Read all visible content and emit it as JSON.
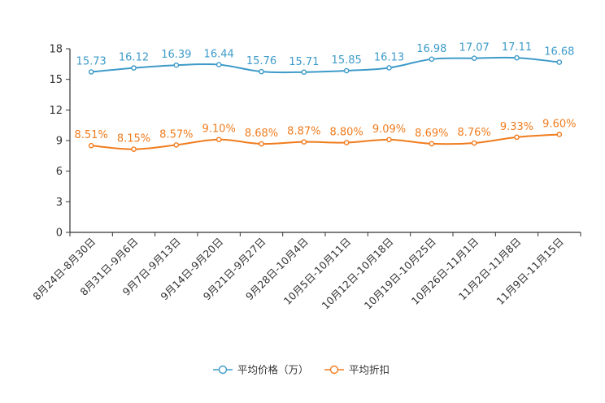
{
  "chart_data": {
    "type": "line",
    "categories": [
      "8月24日-8月30日",
      "8月31日-9月6日",
      "9月7日-9月13日",
      "9月14日-9月20日",
      "9月21日-9月27日",
      "9月28日-10月4日",
      "10月5日-10月11日",
      "10月12日-10月18日",
      "10月19日-10月25日",
      "10月26日-11月1日",
      "11月2日-11月8日",
      "11月9日-11月15日"
    ],
    "yticks": [
      "0",
      "3",
      "6",
      "9",
      "12",
      "15",
      "18"
    ],
    "ylim": [
      0,
      18
    ],
    "series": [
      {
        "name": "平均价格（万）",
        "color": "#3e9bc9",
        "values": [
          15.73,
          16.12,
          16.39,
          16.44,
          15.76,
          15.71,
          15.85,
          16.13,
          16.98,
          17.07,
          17.11,
          16.68
        ],
        "labels": [
          "15.73",
          "16.12",
          "16.39",
          "16.44",
          "15.76",
          "15.71",
          "15.85",
          "16.13",
          "16.98",
          "17.07",
          "17.11",
          "16.68"
        ]
      },
      {
        "name": "平均折扣",
        "color": "#f07c1e",
        "values": [
          8.51,
          8.15,
          8.57,
          9.1,
          8.68,
          8.87,
          8.8,
          9.09,
          8.69,
          8.76,
          9.33,
          9.6
        ],
        "labels": [
          "8.51%",
          "8.15%",
          "8.57%",
          "9.10%",
          "8.68%",
          "8.87%",
          "8.80%",
          "9.09%",
          "8.69%",
          "8.76%",
          "9.33%",
          "9.60%"
        ]
      }
    ],
    "legend_position": "bottom-center"
  }
}
